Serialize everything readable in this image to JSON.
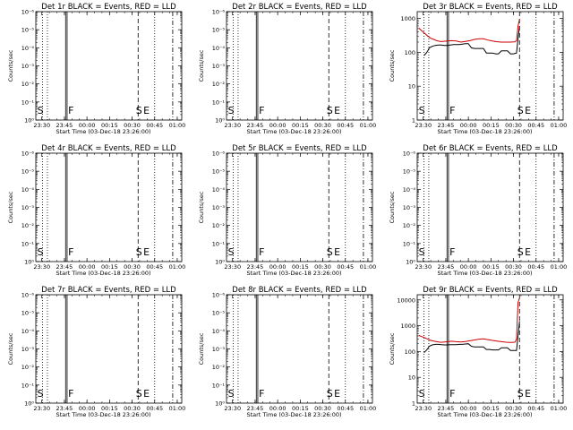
{
  "chart_data": [
    {
      "type": "line",
      "title": "Det 1r BLACK = Events, RED = LLD",
      "xlabel": "Start Time (03-Dec-18 23:26:00)",
      "ylabel": "Counts/sec",
      "x_ticks": [
        "23:30",
        "23:45",
        "00:00",
        "00:15",
        "00:30",
        "00:45",
        "01:00"
      ],
      "y_ticks": [
        "10⁰",
        "10⁻¹",
        "10⁻²",
        "10⁻³",
        "10⁻⁴",
        "10⁻⁵",
        "10⁻⁶"
      ],
      "markers": [
        "S",
        "F",
        "S",
        "E"
      ],
      "series": []
    },
    {
      "type": "line",
      "title": "Det 2r BLACK = Events, RED = LLD",
      "xlabel": "Start Time (03-Dec-18 23:26:00)",
      "ylabel": "Counts/sec",
      "x_ticks": [
        "23:30",
        "23:45",
        "00:00",
        "00:15",
        "00:30",
        "00:45",
        "01:00"
      ],
      "y_ticks": [
        "10⁰",
        "10⁻¹",
        "10⁻²",
        "10⁻³",
        "10⁻⁴",
        "10⁻⁵",
        "10⁻⁶"
      ],
      "markers": [
        "S",
        "F",
        "S",
        "E"
      ],
      "series": []
    },
    {
      "type": "line",
      "title": "Det 3r BLACK = Events, RED = LLD",
      "xlabel": "Start Time (03-Dec-18 23:26:00)",
      "ylabel": "Counts/sec",
      "x_ticks": [
        "23:30",
        "23:45",
        "00:00",
        "00:15",
        "00:30",
        "00:45",
        "01:00"
      ],
      "y_ticks": [
        "1",
        "10",
        "100",
        "1000"
      ],
      "markers": [
        "S",
        "F",
        "S",
        "E"
      ],
      "series": [
        {
          "color": "#000000",
          "x": [
            4.5,
            6,
            7,
            8,
            10,
            12,
            14,
            16,
            18,
            20,
            22,
            24,
            26,
            28,
            30,
            32,
            34,
            36,
            38,
            40,
            42,
            44,
            46,
            48,
            50,
            52,
            54,
            56,
            58,
            60,
            62,
            64,
            66,
            67,
            68
          ],
          "y": [
            80,
            95,
            110,
            135,
            150,
            160,
            165,
            165,
            160,
            160,
            165,
            170,
            170,
            170,
            175,
            180,
            180,
            135,
            130,
            130,
            130,
            130,
            95,
            95,
            95,
            90,
            90,
            110,
            110,
            110,
            90,
            90,
            95,
            250,
            600
          ]
        },
        {
          "color": "#cc0000",
          "x": [
            1,
            3,
            5,
            7,
            9,
            11,
            13,
            15,
            17,
            20,
            23,
            26,
            29,
            32,
            35,
            38,
            41,
            44,
            47,
            50,
            53,
            56,
            59,
            62,
            65,
            66,
            67,
            68
          ],
          "y": [
            520,
            430,
            360,
            300,
            260,
            240,
            220,
            210,
            210,
            215,
            220,
            215,
            200,
            210,
            220,
            240,
            250,
            250,
            230,
            215,
            205,
            200,
            200,
            200,
            205,
            220,
            600,
            950
          ]
        }
      ]
    },
    {
      "type": "line",
      "title": "Det 4r BLACK = Events, RED = LLD",
      "xlabel": "Start Time (03-Dec-18 23:26:00)",
      "ylabel": "Counts/sec",
      "x_ticks": [
        "23:30",
        "23:45",
        "00:00",
        "00:15",
        "00:30",
        "00:45",
        "01:00"
      ],
      "y_ticks": [
        "10⁰",
        "10⁻¹",
        "10⁻²",
        "10⁻³",
        "10⁻⁴",
        "10⁻⁵",
        "10⁻⁶"
      ],
      "markers": [
        "S",
        "F",
        "S",
        "E"
      ],
      "series": []
    },
    {
      "type": "line",
      "title": "Det 5r BLACK = Events, RED = LLD",
      "xlabel": "Start Time (03-Dec-18 23:26:00)",
      "ylabel": "Counts/sec",
      "x_ticks": [
        "23:30",
        "23:45",
        "00:00",
        "00:15",
        "00:30",
        "00:45",
        "01:00"
      ],
      "y_ticks": [
        "10⁰",
        "10⁻¹",
        "10⁻²",
        "10⁻³",
        "10⁻⁴",
        "10⁻⁵",
        "10⁻⁶"
      ],
      "markers": [
        "S",
        "F",
        "S",
        "E"
      ],
      "series": []
    },
    {
      "type": "line",
      "title": "Det 6r BLACK = Events, RED = LLD",
      "xlabel": "Start Time (03-Dec-18 23:26:00)",
      "ylabel": "Counts/sec",
      "x_ticks": [
        "23:30",
        "23:45",
        "00:00",
        "00:15",
        "00:30",
        "00:45",
        "01:00"
      ],
      "y_ticks": [
        "10⁰",
        "10⁻¹",
        "10⁻²",
        "10⁻³",
        "10⁻⁴",
        "10⁻⁵",
        "10⁻⁶"
      ],
      "markers": [
        "S",
        "F",
        "S",
        "E"
      ],
      "series": []
    },
    {
      "type": "line",
      "title": "Det 7r BLACK = Events, RED = LLD",
      "xlabel": "Start Time (03-Dec-18 23:26:00)",
      "ylabel": "Counts/sec",
      "x_ticks": [
        "23:30",
        "23:45",
        "00:00",
        "00:15",
        "00:30",
        "00:45",
        "01:00"
      ],
      "y_ticks": [
        "10⁰",
        "10⁻¹",
        "10⁻²",
        "10⁻³",
        "10⁻⁴",
        "10⁻⁵",
        "10⁻⁶"
      ],
      "markers": [
        "S",
        "F",
        "S",
        "E"
      ],
      "series": []
    },
    {
      "type": "line",
      "title": "Det 8r BLACK = Events, RED = LLD",
      "xlabel": "Start Time (03-Dec-18 23:26:00)",
      "ylabel": "Counts/sec",
      "x_ticks": [
        "23:30",
        "23:45",
        "00:00",
        "00:15",
        "00:30",
        "00:45",
        "01:00"
      ],
      "y_ticks": [
        "10⁰",
        "10⁻¹",
        "10⁻²",
        "10⁻³",
        "10⁻⁴",
        "10⁻⁵",
        "10⁻⁶"
      ],
      "markers": [
        "S",
        "F",
        "S",
        "E"
      ],
      "series": []
    },
    {
      "type": "line",
      "title": "Det 9r BLACK = Events, RED = LLD",
      "xlabel": "Start Time (03-Dec-18 23:26:00)",
      "ylabel": "Counts/sec",
      "x_ticks": [
        "23:30",
        "23:45",
        "00:00",
        "00:15",
        "00:30",
        "00:45",
        "01:00"
      ],
      "y_ticks": [
        "1",
        "10",
        "100",
        "1000",
        "10000"
      ],
      "markers": [
        "S",
        "F",
        "S",
        "E"
      ],
      "series": [
        {
          "color": "#000000",
          "x": [
            4.5,
            6,
            7,
            8,
            10,
            12,
            14,
            16,
            18,
            20,
            22,
            24,
            26,
            28,
            30,
            32,
            34,
            36,
            38,
            40,
            42,
            44,
            46,
            48,
            50,
            52,
            54,
            56,
            58,
            60,
            62,
            64,
            66,
            67,
            68
          ],
          "y": [
            90,
            110,
            130,
            160,
            180,
            190,
            190,
            185,
            180,
            180,
            185,
            185,
            185,
            190,
            190,
            195,
            200,
            160,
            150,
            150,
            150,
            150,
            120,
            120,
            115,
            115,
            115,
            140,
            140,
            140,
            110,
            110,
            110,
            400,
            1500
          ]
        },
        {
          "color": "#cc0000",
          "x": [
            1,
            3,
            5,
            7,
            9,
            11,
            13,
            15,
            17,
            20,
            23,
            26,
            29,
            32,
            35,
            38,
            41,
            44,
            47,
            50,
            53,
            56,
            59,
            62,
            65,
            66,
            67,
            68
          ],
          "y": [
            420,
            380,
            340,
            300,
            270,
            255,
            240,
            230,
            230,
            240,
            250,
            240,
            235,
            245,
            260,
            280,
            300,
            310,
            290,
            270,
            255,
            240,
            230,
            225,
            230,
            300,
            8000,
            12000
          ]
        }
      ]
    }
  ]
}
